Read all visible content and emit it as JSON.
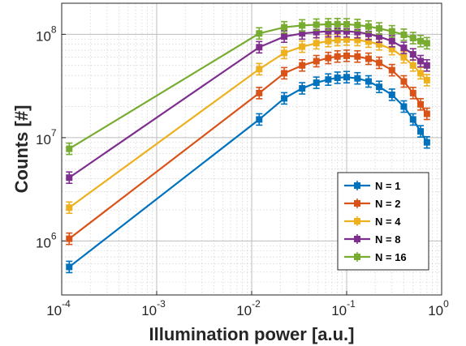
{
  "chart_data": {
    "type": "line",
    "title": "",
    "xlabel": "Illumination power [a.u.]",
    "ylabel": "Counts [#]",
    "xscale": "log",
    "yscale": "log",
    "xlim": [
      0.0001,
      1
    ],
    "ylim": [
      300000,
      200000000
    ],
    "grid": true,
    "minor_grid": true,
    "legend_position": "bottom-right",
    "x_ticks": [
      {
        "base": "10",
        "exp": "-4"
      },
      {
        "base": "10",
        "exp": "-3"
      },
      {
        "base": "10",
        "exp": "-2"
      },
      {
        "base": "10",
        "exp": "-1"
      },
      {
        "base": "10",
        "exp": "0"
      }
    ],
    "y_ticks": [
      {
        "base": "10",
        "exp": "6"
      },
      {
        "base": "10",
        "exp": "7"
      },
      {
        "base": "10",
        "exp": "8"
      }
    ],
    "x": [
      0.00012,
      0.012,
      0.022,
      0.034,
      0.048,
      0.064,
      0.08,
      0.1,
      0.13,
      0.17,
      0.22,
      0.3,
      0.4,
      0.5,
      0.6,
      0.7
    ],
    "series": [
      {
        "name": "N = 1",
        "color": "#0072BD",
        "values": [
          560000,
          15000000,
          24000000,
          30000000,
          34000000,
          36500000,
          38000000,
          38500000,
          37500000,
          35000000,
          31000000,
          26000000,
          20000000,
          15000000,
          11500000,
          9000000
        ]
      },
      {
        "name": "N = 2",
        "color": "#D95319",
        "values": [
          1050000,
          27000000,
          42000000,
          50000000,
          55000000,
          59000000,
          61000000,
          62000000,
          61000000,
          58000000,
          53000000,
          45000000,
          35000000,
          27000000,
          21000000,
          17000000
        ]
      },
      {
        "name": "N = 4",
        "color": "#EDB120",
        "values": [
          2100000,
          46000000,
          66000000,
          76000000,
          82000000,
          86000000,
          88000000,
          89000000,
          88000000,
          85000000,
          80000000,
          72000000,
          60000000,
          50000000,
          42000000,
          36000000
        ]
      },
      {
        "name": "N = 8",
        "color": "#7E2F8E",
        "values": [
          4100000,
          75000000,
          95000000,
          102000000,
          105000000,
          107000000,
          108000000,
          107000000,
          105000000,
          101000000,
          95000000,
          86000000,
          74000000,
          64000000,
          55000000,
          50000000
        ]
      },
      {
        "name": "N = 16",
        "color": "#77AC30",
        "values": [
          7800000,
          102000000,
          117000000,
          122000000,
          124000000,
          125000000,
          125500000,
          125000000,
          123000000,
          119000000,
          114000000,
          107000000,
          99000000,
          92000000,
          86000000,
          82000000
        ]
      }
    ]
  }
}
